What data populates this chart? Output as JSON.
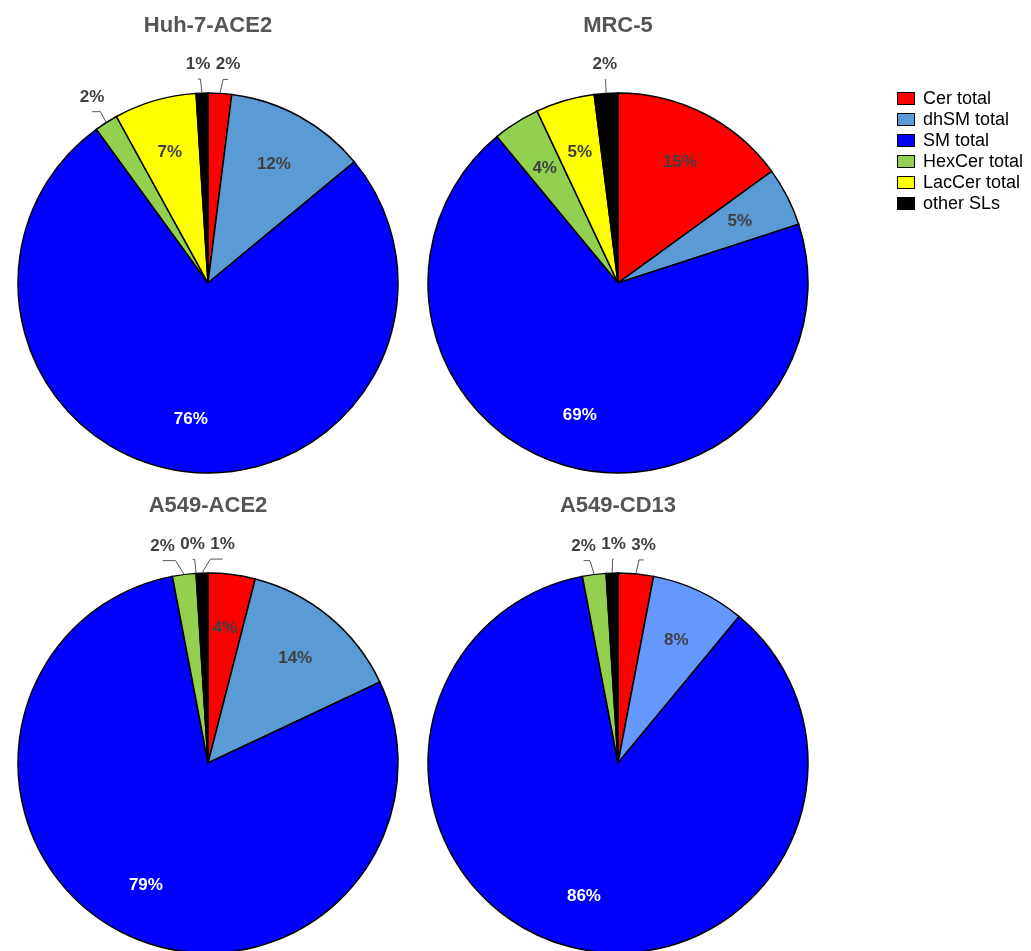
{
  "chart_data": [
    {
      "type": "pie",
      "title": "Huh-7-ACE2",
      "categories": [
        null,
        null,
        null,
        null,
        null,
        null
      ],
      "values": [
        2,
        12,
        76,
        2,
        7,
        1
      ],
      "value_labels": [
        "2%",
        "12%",
        "76%",
        "2%",
        "7%",
        "1%"
      ],
      "colors": [
        "#ff0000",
        "#5b9bd5",
        "#0000ff",
        "#92d050",
        "#ffff00",
        "#000000"
      ]
    },
    {
      "type": "pie",
      "title": "MRC-5",
      "categories": [
        "Cer total",
        "dhSM total",
        "SM total",
        "HexCer total",
        "LacCer total",
        "other SLs"
      ],
      "values": [
        15,
        5,
        69,
        4,
        5,
        2
      ],
      "value_labels": [
        "15%",
        "5%",
        "69%",
        "4%",
        "5%",
        "2%"
      ],
      "colors": [
        "#ff0000",
        "#5b9bd5",
        "#0000ff",
        "#92d050",
        "#ffff00",
        "#000000"
      ],
      "legend": "top right"
    },
    {
      "type": "pie",
      "title": "A549-ACE2",
      "categories": [
        null,
        null,
        null,
        null,
        null,
        null
      ],
      "values": [
        4,
        14,
        79,
        2,
        0,
        1
      ],
      "value_labels": [
        "4%",
        "14%",
        "79%",
        "2%",
        "0%",
        "1%"
      ],
      "colors": [
        "#ff0000",
        "#5b9bd5",
        "#0000ff",
        "#92d050",
        "#ffff00",
        "#000000"
      ]
    },
    {
      "type": "pie",
      "title": "A549-CD13",
      "categories": [
        null,
        null,
        null,
        null,
        null,
        null
      ],
      "values": [
        3,
        8,
        86,
        2,
        0,
        1
      ],
      "value_labels": [
        "3%",
        "8%",
        "86%",
        "2%",
        null,
        "1%"
      ],
      "colors": [
        "#ff0000",
        "#6699ff",
        "#0000ff",
        "#92d050",
        "#ffff00",
        "#000000"
      ]
    }
  ]
}
